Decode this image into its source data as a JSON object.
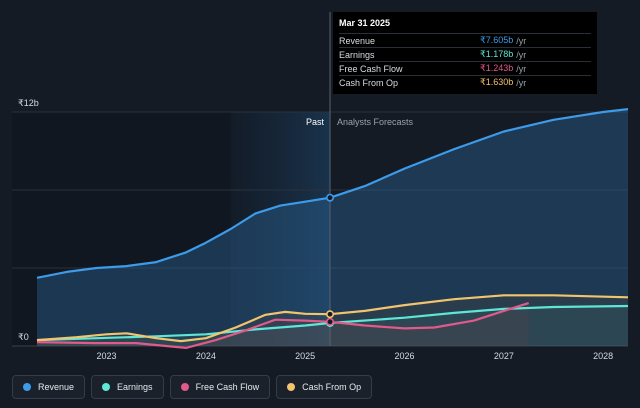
{
  "chart_data": {
    "type": "area",
    "y_axis": {
      "top_label": "₹12b",
      "bottom_label": "₹0",
      "ylim": [
        0,
        12
      ]
    },
    "x_ticks": [
      "2023",
      "2024",
      "2025",
      "2026",
      "2027",
      "2028"
    ],
    "xlim": [
      2022.3,
      2028.25
    ],
    "divider_x": 2025.25,
    "shaded_region": [
      2024.25,
      2025.25
    ],
    "region_labels": {
      "past": "Past",
      "forecast": "Analysts Forecasts"
    },
    "series": [
      {
        "name": "Revenue",
        "color": "#3d9be9",
        "points": [
          [
            2022.3,
            3.5
          ],
          [
            2022.6,
            3.8
          ],
          [
            2022.9,
            4.0
          ],
          [
            2023.2,
            4.1
          ],
          [
            2023.5,
            4.3
          ],
          [
            2023.8,
            4.8
          ],
          [
            2024.0,
            5.3
          ],
          [
            2024.25,
            6.0
          ],
          [
            2024.5,
            6.8
          ],
          [
            2024.75,
            7.2
          ],
          [
            2025.0,
            7.4
          ],
          [
            2025.25,
            7.605
          ],
          [
            2025.6,
            8.2
          ],
          [
            2026.0,
            9.1
          ],
          [
            2026.5,
            10.1
          ],
          [
            2027.0,
            11.0
          ],
          [
            2027.5,
            11.6
          ],
          [
            2028.0,
            12.0
          ],
          [
            2028.25,
            12.15
          ]
        ]
      },
      {
        "name": "Earnings",
        "color": "#5ee6d7",
        "points": [
          [
            2022.3,
            0.3
          ],
          [
            2022.9,
            0.4
          ],
          [
            2023.5,
            0.5
          ],
          [
            2024.0,
            0.6
          ],
          [
            2024.5,
            0.85
          ],
          [
            2025.0,
            1.05
          ],
          [
            2025.25,
            1.178
          ],
          [
            2026.0,
            1.45
          ],
          [
            2026.5,
            1.7
          ],
          [
            2027.0,
            1.9
          ],
          [
            2027.5,
            2.0
          ],
          [
            2028.25,
            2.05
          ]
        ]
      },
      {
        "name": "Free Cash Flow",
        "color": "#e05a8a",
        "points": [
          [
            2022.3,
            0.2
          ],
          [
            2022.9,
            0.15
          ],
          [
            2023.3,
            0.15
          ],
          [
            2023.6,
            0.0
          ],
          [
            2023.8,
            -0.1
          ],
          [
            2024.1,
            0.3
          ],
          [
            2024.4,
            0.8
          ],
          [
            2024.7,
            1.35
          ],
          [
            2025.0,
            1.3
          ],
          [
            2025.25,
            1.243
          ],
          [
            2025.6,
            1.05
          ],
          [
            2026.0,
            0.9
          ],
          [
            2026.3,
            0.95
          ],
          [
            2026.7,
            1.3
          ],
          [
            2027.0,
            1.8
          ],
          [
            2027.25,
            2.2
          ]
        ]
      },
      {
        "name": "Cash From Op",
        "color": "#f2c46d",
        "points": [
          [
            2022.3,
            0.3
          ],
          [
            2022.7,
            0.45
          ],
          [
            2023.0,
            0.6
          ],
          [
            2023.2,
            0.65
          ],
          [
            2023.5,
            0.4
          ],
          [
            2023.75,
            0.25
          ],
          [
            2024.0,
            0.4
          ],
          [
            2024.3,
            0.95
          ],
          [
            2024.6,
            1.6
          ],
          [
            2024.8,
            1.75
          ],
          [
            2025.0,
            1.65
          ],
          [
            2025.25,
            1.63
          ],
          [
            2025.6,
            1.8
          ],
          [
            2026.0,
            2.1
          ],
          [
            2026.5,
            2.4
          ],
          [
            2027.0,
            2.6
          ],
          [
            2027.5,
            2.6
          ],
          [
            2028.25,
            2.5
          ]
        ]
      }
    ]
  },
  "tooltip": {
    "date": "Mar 31 2025",
    "unit": "/yr",
    "rows": [
      {
        "label": "Revenue",
        "value": "₹7.605b",
        "color": "#3d9be9"
      },
      {
        "label": "Earnings",
        "value": "₹1.178b",
        "color": "#5ee6d7"
      },
      {
        "label": "Free Cash Flow",
        "value": "₹1.243b",
        "color": "#e05a8a"
      },
      {
        "label": "Cash From Op",
        "value": "₹1.630b",
        "color": "#f2c46d"
      }
    ]
  },
  "legend": [
    {
      "label": "Revenue",
      "color": "#3d9be9"
    },
    {
      "label": "Earnings",
      "color": "#5ee6d7"
    },
    {
      "label": "Free Cash Flow",
      "color": "#e05a8a"
    },
    {
      "label": "Cash From Op",
      "color": "#f2c46d"
    }
  ]
}
